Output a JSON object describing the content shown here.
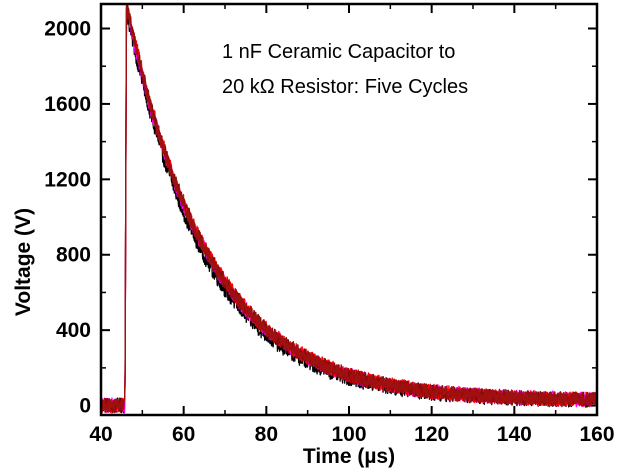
{
  "chart_data": {
    "type": "line",
    "title": "",
    "xlabel": "Time (µs)",
    "ylabel": "Voltage (V)",
    "xlim": [
      40,
      160
    ],
    "ylim": [
      -50,
      2130
    ],
    "x_ticks": [
      40,
      60,
      80,
      100,
      120,
      140,
      160
    ],
    "y_ticks": [
      0,
      400,
      800,
      1200,
      1600,
      2000
    ],
    "grid": false,
    "legend": "none",
    "annotation": [
      "1 nF Ceramic Capacitor to",
      "20 kΩ Resistor: Five Cycles"
    ],
    "series": [
      {
        "color": "#000000",
        "pulse_start_us": 45.8,
        "peak_V": 2070,
        "decay_tau_us": 19.0,
        "noise_V": 40
      },
      {
        "color": "#ff00ff",
        "pulse_start_us": 45.8,
        "peak_V": 2090,
        "decay_tau_us": 19.8,
        "noise_V": 40
      },
      {
        "color": "#ff0000",
        "pulse_start_us": 45.8,
        "peak_V": 2120,
        "decay_tau_us": 19.8,
        "noise_V": 40
      },
      {
        "color": "#8b0a0a",
        "pulse_start_us": 45.8,
        "peak_V": 2110,
        "decay_tau_us": 19.8,
        "noise_V": 38
      },
      {
        "color": "#a01010",
        "pulse_start_us": 45.8,
        "peak_V": 2100,
        "decay_tau_us": 19.7,
        "noise_V": 36
      }
    ]
  }
}
